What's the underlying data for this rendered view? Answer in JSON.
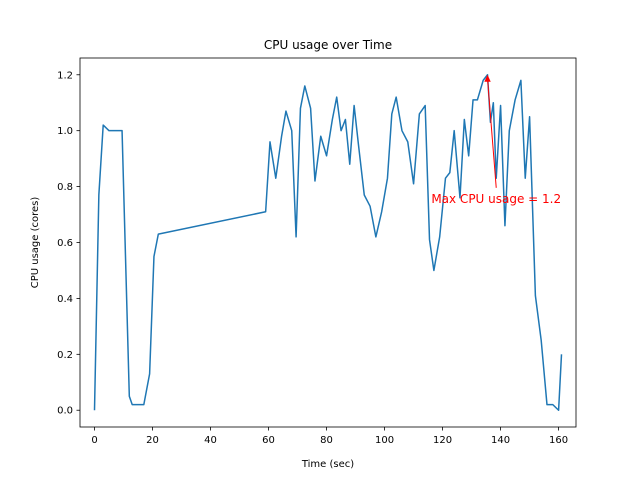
{
  "chart_data": {
    "type": "line",
    "title": "CPU usage over Time",
    "xlabel": "Time (sec)",
    "ylabel": "CPU usage (cores)",
    "xlim": [
      -5,
      166
    ],
    "ylim": [
      -0.06,
      1.26
    ],
    "xticks": [
      0,
      20,
      40,
      60,
      80,
      100,
      120,
      140,
      160
    ],
    "yticks": [
      0.0,
      0.2,
      0.4,
      0.6,
      0.8,
      1.0,
      1.2
    ],
    "ytick_labels": [
      "0.0",
      "0.2",
      "0.4",
      "0.6",
      "0.8",
      "1.0",
      "1.2"
    ],
    "grid": false,
    "line_color": "#1f77b4",
    "series": [
      {
        "x": [
          0,
          1.5,
          3,
          5,
          7,
          9.5,
          12,
          13,
          15,
          17,
          19,
          20.5,
          22,
          59,
          60.5,
          62.5,
          64.5,
          66,
          68,
          69.5,
          71,
          72.5,
          74.5,
          76,
          78,
          80,
          82,
          83.5,
          85,
          86.5,
          88,
          89.5,
          91,
          93,
          95,
          97,
          99,
          101,
          102.5,
          104,
          106,
          108,
          110,
          112,
          114,
          115.5,
          117,
          119,
          121,
          122.5,
          124,
          126,
          127.5,
          129,
          130.5,
          132,
          134,
          135.5,
          136.5,
          137.5,
          138.5,
          140,
          141.5,
          143,
          145,
          147,
          148.5,
          150,
          152,
          154,
          156,
          158,
          160,
          161
        ],
        "y": [
          0.0,
          0.77,
          1.02,
          1.0,
          1.0,
          1.0,
          0.05,
          0.02,
          0.02,
          0.02,
          0.13,
          0.55,
          0.63,
          0.71,
          0.96,
          0.83,
          0.98,
          1.07,
          1.0,
          0.62,
          1.08,
          1.16,
          1.08,
          0.82,
          0.98,
          0.91,
          1.04,
          1.12,
          1.0,
          1.04,
          0.88,
          1.09,
          0.95,
          0.77,
          0.73,
          0.62,
          0.71,
          0.83,
          1.06,
          1.12,
          1.0,
          0.96,
          0.81,
          1.06,
          1.09,
          0.61,
          0.5,
          0.62,
          0.83,
          0.85,
          1.0,
          0.76,
          1.04,
          0.91,
          1.11,
          1.11,
          1.18,
          1.2,
          1.03,
          1.1,
          0.83,
          1.09,
          0.66,
          1.0,
          1.11,
          1.18,
          0.83,
          1.05,
          0.41,
          0.25,
          0.02,
          0.02,
          0.0,
          0.2
        ]
      }
    ],
    "annotation": {
      "text": "Max CPU usage = 1.2",
      "point": [
        135.5,
        1.2
      ],
      "text_position": [
        138.5,
        0.76
      ],
      "color": "#ff0000"
    }
  }
}
